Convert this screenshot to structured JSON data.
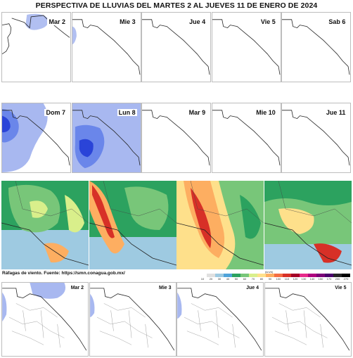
{
  "title": "PERSPECTIVA DE LLUVIAS DEL MARTES 2 AL JUEVES 11 DE ENERO DE 2024",
  "rain_row_1": [
    {
      "label": "Mar 2",
      "rain": "top"
    },
    {
      "label": "Mie 3",
      "rain": "edge"
    },
    {
      "label": "Jue 4",
      "rain": "none"
    },
    {
      "label": "Vie 5",
      "rain": "none"
    },
    {
      "label": "Sab 6",
      "rain": "none"
    }
  ],
  "rain_row_2": [
    {
      "label": "Dom 7",
      "rain": "heavy-west"
    },
    {
      "label": "Lun 8",
      "rain": "heavy-center"
    },
    {
      "label": "Mar 9",
      "rain": "none"
    },
    {
      "label": "Mie 10",
      "rain": "none"
    },
    {
      "label": "Jue 11",
      "rain": "none"
    }
  ],
  "wind_panels": 4,
  "caption": "Ráfagas de viento.  Fuente: https://smn.conagua.gob.mx/",
  "scale": {
    "unit": "(km/h)",
    "ticks": [
      "10",
      "20",
      "30",
      "40",
      "50",
      "60",
      "70",
      "80",
      "90",
      "100",
      "110",
      "120",
      "130",
      "140",
      "150",
      "170",
      "200",
      "270"
    ],
    "colors": [
      "#ffffff",
      "#e0e0e0",
      "#9ecae1",
      "#4fa3d9",
      "#2ca25f",
      "#78c679",
      "#d9ef8b",
      "#fee08b",
      "#fdae61",
      "#f46d43",
      "#d73027",
      "#a50026",
      "#e7298a",
      "#ae017e",
      "#7a0177",
      "#49006a",
      "#252525",
      "#000000"
    ]
  },
  "bottom_row": [
    {
      "label": "Mar 2"
    },
    {
      "label": "Mie 3"
    },
    {
      "label": "Jue 4"
    },
    {
      "label": "Vie 5"
    }
  ],
  "colors": {
    "rain_light": "#a8b8f0",
    "rain_mid": "#6a86ea",
    "rain_heavy": "#2a44d8",
    "border": "#222222"
  }
}
